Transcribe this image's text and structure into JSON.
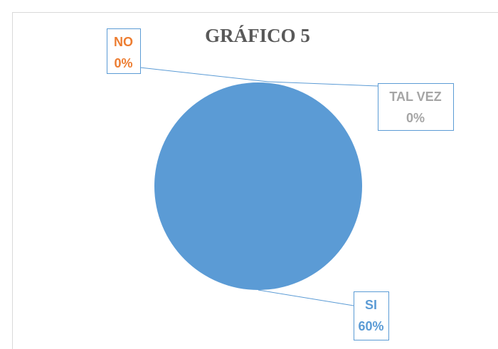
{
  "chart_data": {
    "type": "pie",
    "title": "GRÁFICO 5",
    "categories": [
      "SI",
      "NO",
      "TAL VEZ"
    ],
    "values": [
      60,
      0,
      0
    ],
    "value_labels": [
      "60%",
      "0%",
      "0%"
    ],
    "colors": [
      "#5b9bd5",
      "#ed7d31",
      "#a5a5a5"
    ]
  }
}
